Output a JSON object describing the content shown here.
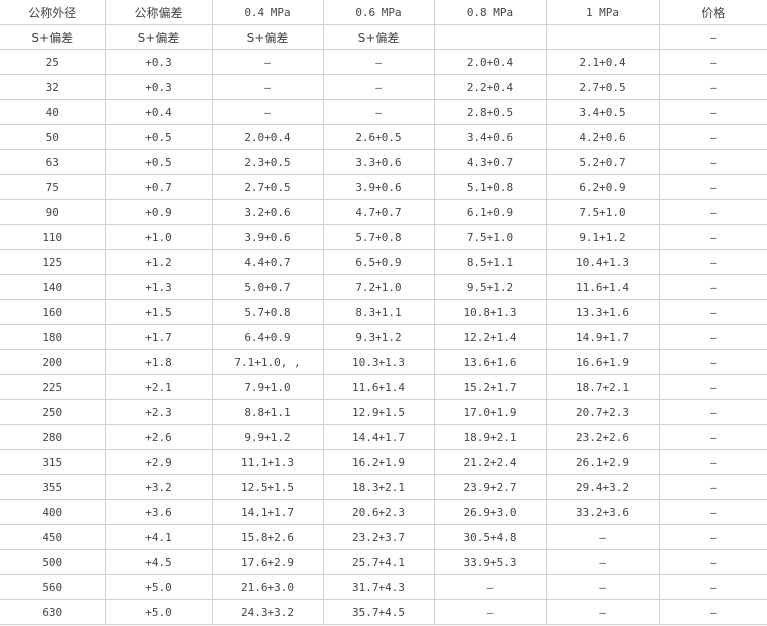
{
  "table": {
    "header": [
      "公称外径",
      "公称偏差",
      "0.4 MPa",
      "0.6 MPa",
      "0.8 MPa",
      "1 MPa",
      "价格"
    ],
    "subheader": [
      "S+偏差",
      "S+偏差",
      "S+偏差",
      "S+偏差",
      "",
      "",
      "—"
    ],
    "rows": [
      [
        "25",
        "+0.3",
        "—",
        "—",
        "2.0+0.4",
        "2.1+0.4",
        "—"
      ],
      [
        "32",
        "+0.3",
        "—",
        "—",
        "2.2+0.4",
        "2.7+0.5",
        "—"
      ],
      [
        "40",
        "+0.4",
        "—",
        "—",
        "2.8+0.5",
        "3.4+0.5",
        "—"
      ],
      [
        "50",
        "+0.5",
        "2.0+0.4",
        "2.6+0.5",
        "3.4+0.6",
        "4.2+0.6",
        "—"
      ],
      [
        "63",
        "+0.5",
        "2.3+0.5",
        "3.3+0.6",
        "4.3+0.7",
        "5.2+0.7",
        "—"
      ],
      [
        "75",
        "+0.7",
        "2.7+0.5",
        "3.9+0.6",
        "5.1+0.8",
        "6.2+0.9",
        "—"
      ],
      [
        "90",
        "+0.9",
        "3.2+0.6",
        "4.7+0.7",
        "6.1+0.9",
        "7.5+1.0",
        "—"
      ],
      [
        "110",
        "+1.0",
        "3.9+0.6",
        "5.7+0.8",
        "7.5+1.0",
        "9.1+1.2",
        "—"
      ],
      [
        "125",
        "+1.2",
        "4.4+0.7",
        "6.5+0.9",
        "8.5+1.1",
        "10.4+1.3",
        "—"
      ],
      [
        "140",
        "+1.3",
        "5.0+0.7",
        "7.2+1.0",
        "9.5+1.2",
        "11.6+1.4",
        "—"
      ],
      [
        "160",
        "+1.5",
        "5.7+0.8",
        "8.3+1.1",
        "10.8+1.3",
        "13.3+1.6",
        "—"
      ],
      [
        "180",
        "+1.7",
        "6.4+0.9",
        "9.3+1.2",
        "12.2+1.4",
        "14.9+1.7",
        "—"
      ],
      [
        "200",
        "+1.8",
        "7.1+1.0, ,",
        "10.3+1.3",
        "13.6+1.6",
        "16.6+1.9",
        "—"
      ],
      [
        "225",
        "+2.1",
        "7.9+1.0",
        "11.6+1.4",
        "15.2+1.7",
        "18.7+2.1",
        "—"
      ],
      [
        "250",
        "+2.3",
        "8.8+1.1",
        "12.9+1.5",
        "17.0+1.9",
        "20.7+2.3",
        "—"
      ],
      [
        "280",
        "+2.6",
        "9.9+1.2",
        "14.4+1.7",
        "18.9+2.1",
        "23.2+2.6",
        "—"
      ],
      [
        "315",
        "+2.9",
        "11.1+1.3",
        "16.2+1.9",
        "21.2+2.4",
        "26.1+2.9",
        "—"
      ],
      [
        "355",
        "+3.2",
        "12.5+1.5",
        "18.3+2.1",
        "23.9+2.7",
        "29.4+3.2",
        "—"
      ],
      [
        "400",
        "+3.6",
        "14.1+1.7",
        "20.6+2.3",
        "26.9+3.0",
        "33.2+3.6",
        "—"
      ],
      [
        "450",
        "+4.1",
        "15.8+2.6",
        "23.2+3.7",
        "30.5+4.8",
        "—",
        "—"
      ],
      [
        "500",
        "+4.5",
        "17.6+2.9",
        "25.7+4.1",
        "33.9+5.3",
        "—",
        "—"
      ],
      [
        "560",
        "+5.0",
        "21.6+3.0",
        "31.7+4.3",
        "—",
        "—",
        "—"
      ],
      [
        "630",
        "+5.0",
        "24.3+3.2",
        "35.7+4.5",
        "—",
        "—",
        "—"
      ]
    ]
  }
}
